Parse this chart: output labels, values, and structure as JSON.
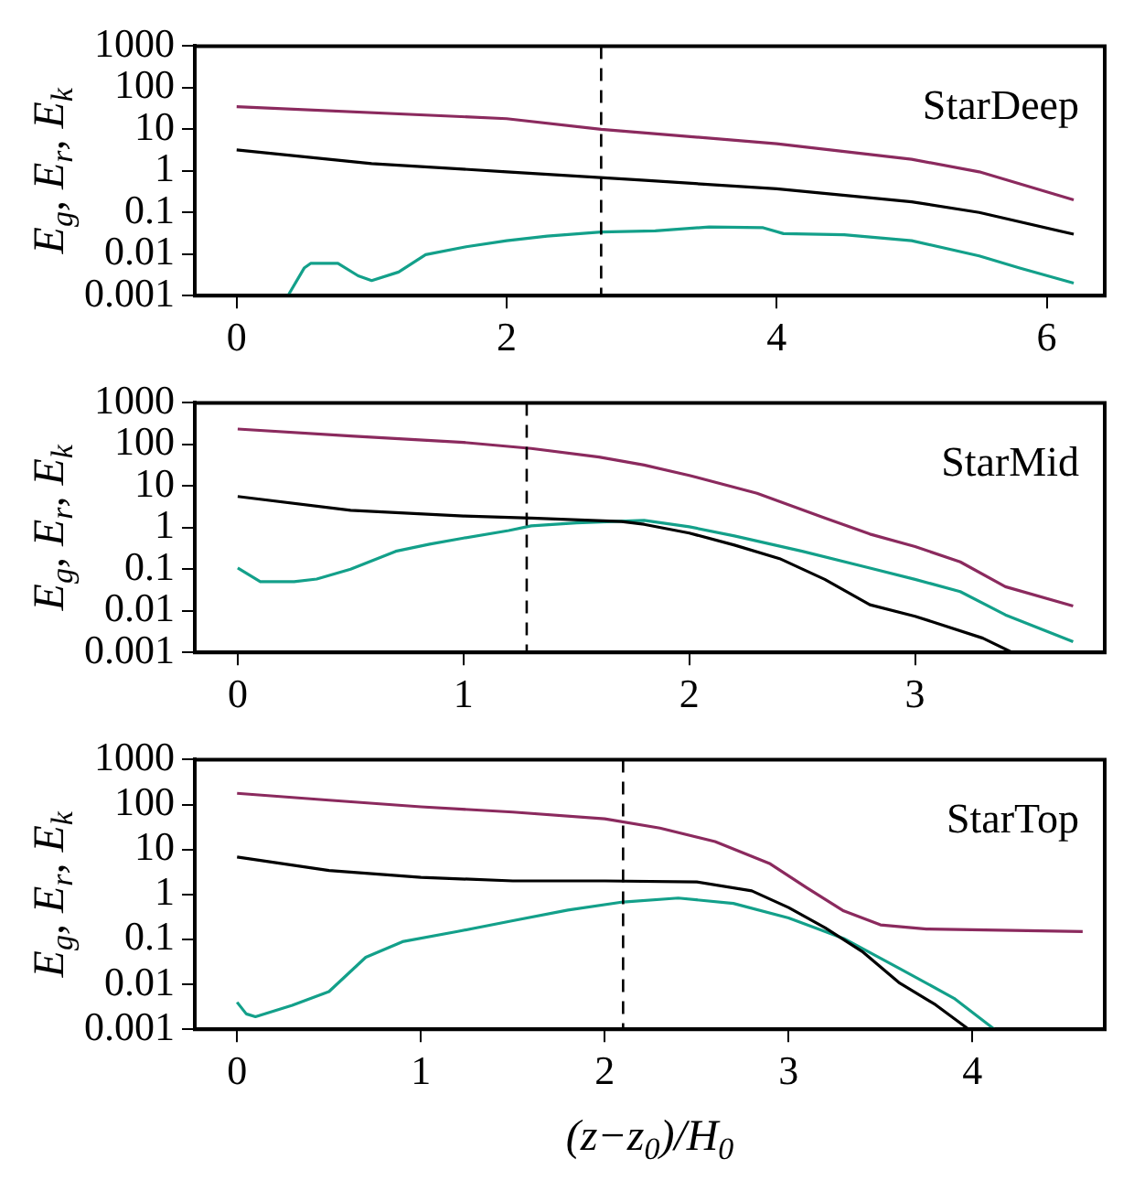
{
  "chart_data": [
    {
      "type": "line",
      "ylabel": "E$_{g}$, E$_{r}$, E$_{k}$",
      "log": "y",
      "xlim": [
        -0.31,
        6.43
      ],
      "xticks": [
        0,
        2,
        4,
        6
      ],
      "ylim": [
        0.001,
        1000
      ],
      "yticks": [
        0.001,
        0.01,
        0.1,
        1,
        10,
        100,
        1000
      ],
      "grid": false,
      "legend": false,
      "marker": "none",
      "annotations": [
        "StarDeep"
      ],
      "ref_lines": [
        {
          "axis": "x",
          "value": 2.7,
          "color": "#000000",
          "line_style": "dashed"
        }
      ],
      "series": [
        {
          "color": "#8b2a5e",
          "x": [
            0,
            2,
            2.7,
            4,
            5,
            5.5,
            6.2
          ],
          "values": [
            35,
            18,
            10,
            4.5,
            1.9,
            0.95,
            0.2
          ]
        },
        {
          "color": "#000000",
          "x": [
            0,
            1,
            2,
            3,
            4,
            5,
            5.5,
            6.2
          ],
          "values": [
            3.2,
            1.5,
            0.95,
            0.6,
            0.37,
            0.18,
            0.1,
            0.03
          ]
        },
        {
          "color": "#13a08a",
          "x": [
            0.38,
            0.5,
            0.55,
            0.75,
            0.9,
            1.0,
            1.2,
            1.4,
            1.7,
            2.0,
            2.3,
            2.7,
            3.1,
            3.5,
            3.9,
            4.05,
            4.5,
            5,
            5.5,
            5.8,
            6.2
          ],
          "values": [
            0.001,
            0.0046,
            0.006,
            0.006,
            0.003,
            0.0023,
            0.0037,
            0.0097,
            0.015,
            0.021,
            0.027,
            0.034,
            0.036,
            0.045,
            0.043,
            0.031,
            0.029,
            0.021,
            0.009,
            0.0046,
            0.002
          ]
        }
      ]
    },
    {
      "type": "line",
      "ylabel": "E$_{g}$, E$_{r}$, E$_{k}$",
      "log": "y",
      "xlim": [
        -0.19,
        3.84
      ],
      "xticks": [
        0,
        1,
        2,
        3
      ],
      "ylim": [
        0.001,
        1000
      ],
      "yticks": [
        0.001,
        0.01,
        0.1,
        1,
        10,
        100,
        1000
      ],
      "grid": false,
      "legend": false,
      "marker": "none",
      "annotations": [
        "StarMid"
      ],
      "ref_lines": [
        {
          "axis": "x",
          "value": 1.28,
          "color": "#000000",
          "line_style": "dashed"
        }
      ],
      "series": [
        {
          "color": "#8b2a5e",
          "x": [
            0,
            0.5,
            1,
            1.3,
            1.6,
            1.8,
            2,
            2.3,
            2.6,
            2.8,
            3.0,
            3.2,
            3.4,
            3.7
          ],
          "values": [
            235,
            160,
            112,
            80,
            50,
            32,
            18,
            6.7,
            1.7,
            0.7,
            0.35,
            0.15,
            0.038,
            0.013
          ]
        },
        {
          "color": "#000000",
          "x": [
            0,
            0.5,
            1,
            1.3,
            1.7,
            1.8,
            2,
            2.2,
            2.4,
            2.6,
            2.8,
            3,
            3.3,
            3.43
          ],
          "values": [
            5.6,
            2.6,
            1.9,
            1.7,
            1.4,
            1.2,
            0.74,
            0.38,
            0.18,
            0.057,
            0.014,
            0.0074,
            0.0022,
            0.001
          ]
        },
        {
          "color": "#13a08a",
          "x": [
            0,
            0.1,
            0.25,
            0.35,
            0.5,
            0.7,
            0.85,
            1,
            1.2,
            1.3,
            1.5,
            1.8,
            2,
            2.2,
            2.5,
            2.8,
            3,
            3.2,
            3.4,
            3.7
          ],
          "values": [
            0.107,
            0.05,
            0.05,
            0.058,
            0.1,
            0.27,
            0.4,
            0.56,
            0.85,
            1.1,
            1.3,
            1.5,
            1.05,
            0.63,
            0.27,
            0.107,
            0.057,
            0.029,
            0.008,
            0.0018
          ]
        }
      ]
    },
    {
      "type": "line",
      "ylabel": "E$_{g}$, E$_{r}$, E$_{k}$",
      "xlabel": "(z−z$_{0}$)/H$_{0}$",
      "log": "y",
      "xlim": [
        -0.23,
        4.72
      ],
      "xticks": [
        0,
        1,
        2,
        3,
        4
      ],
      "ylim": [
        0.001,
        1000
      ],
      "yticks": [
        0.001,
        0.01,
        0.1,
        1,
        10,
        100,
        1000
      ],
      "grid": false,
      "legend": false,
      "marker": "none",
      "annotations": [
        "StarTop"
      ],
      "ref_lines": [
        {
          "axis": "x",
          "value": 2.1,
          "color": "#000000",
          "line_style": "dashed"
        }
      ],
      "series": [
        {
          "color": "#8b2a5e",
          "x": [
            0,
            0.5,
            1,
            1.5,
            2,
            2.3,
            2.6,
            2.9,
            3.1,
            3.3,
            3.5,
            3.75,
            4.6
          ],
          "values": [
            178,
            125,
            89,
            68,
            48,
            30,
            15,
            4.8,
            1.4,
            0.43,
            0.21,
            0.17,
            0.15
          ]
        },
        {
          "color": "#000000",
          "x": [
            0,
            0.5,
            1,
            1.5,
            2,
            2.5,
            2.8,
            3.0,
            3.2,
            3.4,
            3.6,
            3.8,
            3.98
          ],
          "values": [
            6.8,
            3.4,
            2.4,
            2.0,
            2.0,
            1.9,
            1.2,
            0.51,
            0.18,
            0.054,
            0.011,
            0.0035,
            0.001
          ]
        },
        {
          "color": "#13a08a",
          "x": [
            0,
            0.05,
            0.1,
            0.3,
            0.5,
            0.7,
            0.9,
            1.2,
            1.5,
            1.8,
            2.1,
            2.4,
            2.7,
            3.0,
            3.3,
            3.6,
            3.9,
            4.12
          ],
          "values": [
            0.004,
            0.0022,
            0.0019,
            0.0034,
            0.0069,
            0.04,
            0.089,
            0.15,
            0.26,
            0.45,
            0.68,
            0.83,
            0.63,
            0.3,
            0.105,
            0.023,
            0.0049,
            0.001
          ]
        }
      ]
    }
  ]
}
